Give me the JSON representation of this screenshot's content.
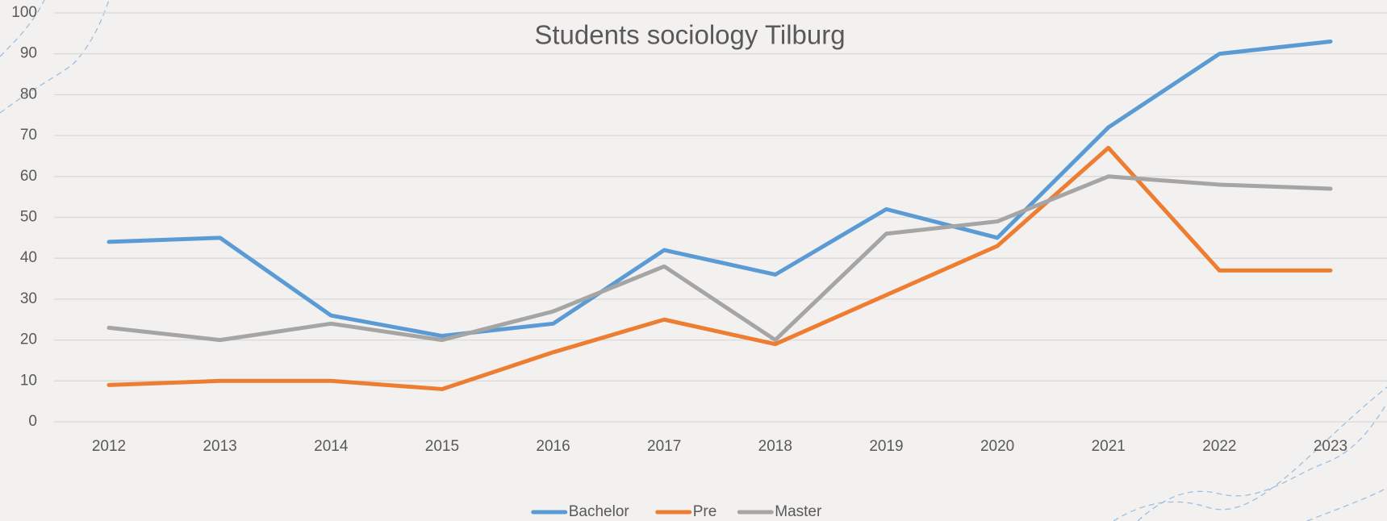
{
  "chart_data": {
    "type": "line",
    "title": "Students sociology Tilburg",
    "categories": [
      "2012",
      "2013",
      "2014",
      "2015",
      "2016",
      "2017",
      "2018",
      "2019",
      "2020",
      "2021",
      "2022",
      "2023"
    ],
    "series": [
      {
        "name": "Bachelor",
        "color": "#5b9bd5",
        "values": [
          44,
          45,
          26,
          21,
          24,
          42,
          36,
          52,
          45,
          72,
          90,
          93
        ]
      },
      {
        "name": "Pre",
        "color": "#ed7d31",
        "values": [
          9,
          10,
          10,
          8,
          17,
          25,
          19,
          31,
          43,
          67,
          37,
          37
        ]
      },
      {
        "name": "Master",
        "color": "#a5a5a5",
        "values": [
          23,
          20,
          24,
          20,
          27,
          38,
          20,
          46,
          49,
          60,
          58,
          57
        ]
      }
    ],
    "ylim": [
      0,
      100
    ],
    "yticks": [
      0,
      10,
      20,
      30,
      40,
      50,
      60,
      70,
      80,
      90,
      100
    ],
    "grid": true,
    "legend": "bottom"
  }
}
